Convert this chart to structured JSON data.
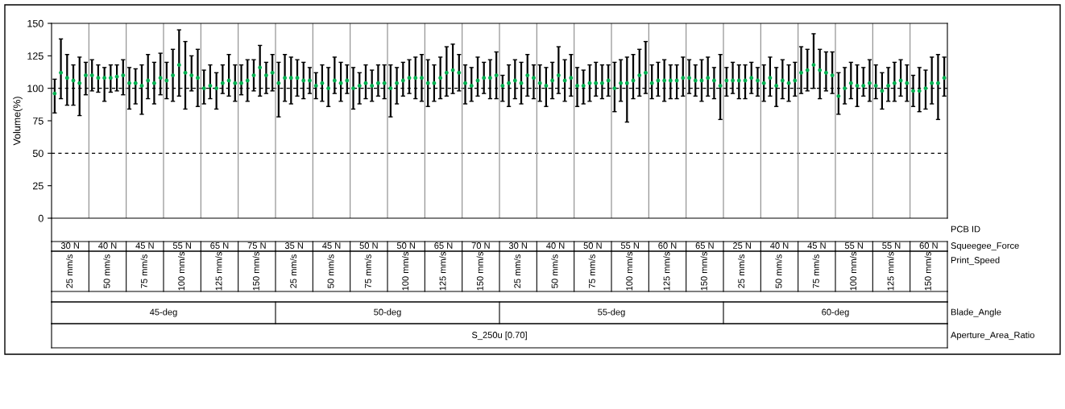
{
  "chart_data": {
    "type": "scatter",
    "ylabel": "Volume(%)",
    "ylim": [
      0,
      150
    ],
    "yticks": [
      0,
      25,
      50,
      75,
      100,
      125,
      150
    ],
    "grid": false,
    "marker": "circle",
    "categories": [
      null,
      null,
      null,
      null,
      null,
      null,
      null,
      null,
      null,
      null,
      null,
      null,
      null,
      null,
      null,
      null,
      null,
      null,
      null,
      null,
      null,
      null,
      null,
      null,
      null,
      null,
      null,
      null,
      null,
      null,
      null,
      null,
      null,
      null,
      null,
      null,
      null,
      null,
      null,
      null,
      null,
      null,
      null,
      null,
      null,
      null,
      null,
      null,
      null,
      null,
      null,
      null,
      null,
      null,
      null,
      null,
      null,
      null,
      null,
      null,
      null,
      null,
      null,
      null,
      null,
      null,
      null,
      null,
      null,
      null,
      null,
      null,
      null,
      null,
      null,
      null,
      null,
      null,
      null,
      null,
      null,
      null,
      null,
      null,
      null,
      null,
      null,
      null,
      null,
      null,
      null,
      null,
      null,
      null,
      null,
      null,
      null,
      null,
      null,
      null,
      null,
      null,
      null,
      null,
      null,
      null,
      null,
      null,
      null,
      null,
      null,
      null,
      null,
      null,
      null,
      null,
      null,
      null,
      null,
      null,
      null,
      null,
      null,
      null,
      null,
      null,
      null,
      null,
      null,
      null,
      null,
      null,
      null,
      null,
      null,
      null,
      null,
      null,
      null,
      null,
      null,
      null,
      null,
      null
    ],
    "series": [
      {
        "color": "#00b050",
        "values": [
          96,
          112,
          108,
          106,
          104,
          110,
          110,
          108,
          108,
          108,
          109,
          110,
          104,
          104,
          102,
          106,
          104,
          108,
          106,
          110,
          118,
          112,
          110,
          108,
          100,
          102,
          100,
          104,
          106,
          104,
          104,
          106,
          110,
          116,
          110,
          112,
          104,
          108,
          108,
          108,
          106,
          106,
          102,
          104,
          100,
          106,
          104,
          106,
          100,
          102,
          104,
          102,
          104,
          104,
          100,
          104,
          106,
          108,
          108,
          108,
          104,
          104,
          108,
          112,
          114,
          112,
          104,
          102,
          106,
          108,
          108,
          110,
          102,
          104,
          106,
          104,
          110,
          108,
          104,
          102,
          106,
          110,
          106,
          108,
          102,
          102,
          104,
          104,
          104,
          106,
          100,
          104,
          104,
          106,
          110,
          112,
          104,
          106,
          106,
          106,
          106,
          108,
          108,
          106,
          106,
          108,
          106,
          102,
          106,
          106,
          106,
          106,
          108,
          106,
          104,
          108,
          102,
          106,
          104,
          106,
          112,
          114,
          118,
          114,
          112,
          110,
          94,
          100,
          104,
          102,
          102,
          104,
          102,
          98,
          102,
          104,
          106,
          104,
          98,
          98,
          100,
          104,
          104,
          108
        ],
        "errors": [
          [
            81,
            107
          ],
          [
            92,
            138
          ],
          [
            87,
            126
          ],
          [
            87,
            118
          ],
          [
            79,
            124
          ],
          [
            95,
            120
          ],
          [
            98,
            122
          ],
          [
            97,
            118
          ],
          [
            90,
            116
          ],
          [
            97,
            118
          ],
          [
            98,
            118
          ],
          [
            95,
            122
          ],
          [
            84,
            116
          ],
          [
            88,
            115
          ],
          [
            80,
            118
          ],
          [
            92,
            126
          ],
          [
            88,
            120
          ],
          [
            95,
            127
          ],
          [
            92,
            120
          ],
          [
            90,
            130
          ],
          [
            94,
            145
          ],
          [
            84,
            136
          ],
          [
            98,
            125
          ],
          [
            86,
            130
          ],
          [
            88,
            114
          ],
          [
            92,
            118
          ],
          [
            84,
            112
          ],
          [
            96,
            118
          ],
          [
            94,
            126
          ],
          [
            90,
            118
          ],
          [
            95,
            118
          ],
          [
            90,
            122
          ],
          [
            98,
            122
          ],
          [
            94,
            133
          ],
          [
            96,
            120
          ],
          [
            98,
            126
          ],
          [
            78,
            120
          ],
          [
            90,
            126
          ],
          [
            88,
            124
          ],
          [
            94,
            122
          ],
          [
            92,
            120
          ],
          [
            96,
            116
          ],
          [
            92,
            112
          ],
          [
            90,
            118
          ],
          [
            86,
            116
          ],
          [
            96,
            124
          ],
          [
            90,
            120
          ],
          [
            96,
            118
          ],
          [
            84,
            116
          ],
          [
            88,
            112
          ],
          [
            92,
            118
          ],
          [
            90,
            114
          ],
          [
            94,
            118
          ],
          [
            92,
            118
          ],
          [
            78,
            118
          ],
          [
            88,
            116
          ],
          [
            94,
            120
          ],
          [
            96,
            122
          ],
          [
            92,
            124
          ],
          [
            90,
            126
          ],
          [
            86,
            122
          ],
          [
            90,
            118
          ],
          [
            92,
            124
          ],
          [
            94,
            132
          ],
          [
            96,
            134
          ],
          [
            98,
            126
          ],
          [
            88,
            118
          ],
          [
            90,
            116
          ],
          [
            94,
            124
          ],
          [
            96,
            120
          ],
          [
            92,
            122
          ],
          [
            92,
            128
          ],
          [
            90,
            110
          ],
          [
            86,
            118
          ],
          [
            92,
            122
          ],
          [
            88,
            120
          ],
          [
            94,
            126
          ],
          [
            92,
            118
          ],
          [
            90,
            118
          ],
          [
            86,
            116
          ],
          [
            92,
            120
          ],
          [
            96,
            132
          ],
          [
            90,
            122
          ],
          [
            94,
            126
          ],
          [
            86,
            116
          ],
          [
            88,
            114
          ],
          [
            90,
            118
          ],
          [
            94,
            120
          ],
          [
            92,
            118
          ],
          [
            94,
            118
          ],
          [
            82,
            120
          ],
          [
            90,
            122
          ],
          [
            74,
            124
          ],
          [
            92,
            126
          ],
          [
            94,
            130
          ],
          [
            96,
            136
          ],
          [
            92,
            118
          ],
          [
            94,
            120
          ],
          [
            90,
            122
          ],
          [
            92,
            118
          ],
          [
            92,
            118
          ],
          [
            94,
            124
          ],
          [
            96,
            122
          ],
          [
            94,
            118
          ],
          [
            90,
            122
          ],
          [
            94,
            124
          ],
          [
            92,
            116
          ],
          [
            76,
            126
          ],
          [
            94,
            116
          ],
          [
            96,
            120
          ],
          [
            92,
            118
          ],
          [
            92,
            118
          ],
          [
            96,
            120
          ],
          [
            94,
            116
          ],
          [
            90,
            118
          ],
          [
            94,
            124
          ],
          [
            86,
            116
          ],
          [
            92,
            122
          ],
          [
            90,
            118
          ],
          [
            94,
            120
          ],
          [
            96,
            132
          ],
          [
            98,
            130
          ],
          [
            100,
            142
          ],
          [
            92,
            130
          ],
          [
            98,
            128
          ],
          [
            96,
            128
          ],
          [
            80,
            112
          ],
          [
            88,
            116
          ],
          [
            92,
            120
          ],
          [
            86,
            118
          ],
          [
            94,
            116
          ],
          [
            90,
            122
          ],
          [
            92,
            118
          ],
          [
            84,
            112
          ],
          [
            90,
            116
          ],
          [
            90,
            120
          ],
          [
            94,
            122
          ],
          [
            90,
            118
          ],
          [
            86,
            110
          ],
          [
            82,
            116
          ],
          [
            84,
            114
          ],
          [
            88,
            124
          ],
          [
            76,
            126
          ],
          [
            94,
            124
          ]
        ]
      }
    ],
    "ref_lines": [
      {
        "axis": "y",
        "value": 50,
        "line_style": "dashed",
        "color": "#000000"
      },
      {
        "axis": "y",
        "value": 100,
        "line_style": "dashed",
        "color": "#000000"
      }
    ],
    "annotations": [
      "PCB ID",
      "Squeegee_Force",
      "30 N",
      "40 N",
      "45 N",
      "55 N",
      "65 N",
      "75 N",
      "35 N",
      "45 N",
      "50 N",
      "50 N",
      "65 N",
      "70 N",
      "30 N",
      "40 N",
      "50 N",
      "55 N",
      "60 N",
      "65 N",
      "25 N",
      "40 N",
      "45 N",
      "55 N",
      "55 N",
      "60 N",
      "Print_Speed",
      "25 mm/s",
      "50 mm/s",
      "75 mm/s",
      "100 mm/s",
      "125 mm/s",
      "150 mm/s",
      "25 mm/s",
      "50 mm/s",
      "75 mm/s",
      "100 mm/s",
      "125 mm/s",
      "150 mm/s",
      "25 mm/s",
      "50 mm/s",
      "75 mm/s",
      "100 mm/s",
      "125 mm/s",
      "150 mm/s",
      "25 mm/s",
      "50 mm/s",
      "75 mm/s",
      "100 mm/s",
      "125 mm/s",
      "150 mm/s",
      "Blade_Angle",
      "45-deg",
      "50-deg",
      "55-deg",
      "60-deg",
      "Aperture_Area_Ratio",
      "S_250u [0.70]"
    ]
  }
}
